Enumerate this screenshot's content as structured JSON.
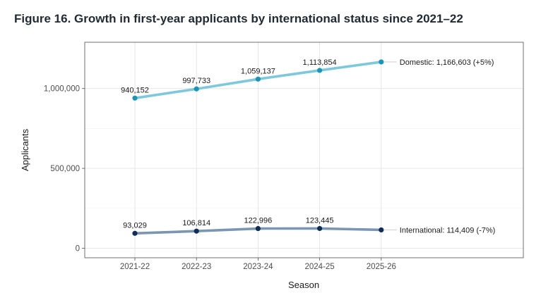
{
  "figure_title": "Figure 16. Growth in first-year applicants by international status since 2021–22",
  "chart_data": {
    "type": "line",
    "title": "Figure 16. Growth in first-year applicants by international status since 2021–22",
    "xlabel": "Season",
    "ylabel": "Applicants",
    "categories": [
      "2021-22",
      "2022-23",
      "2023-24",
      "2024-25",
      "2025-26"
    ],
    "ylim": [
      -60000,
      1290000
    ],
    "yticks": [
      0,
      500000,
      1000000
    ],
    "ytick_labels": [
      "0",
      "500,000",
      "1,000,000"
    ],
    "grid": true,
    "legend": "none (end labels)",
    "series": [
      {
        "name": "Domestic",
        "values": [
          940152,
          997733,
          1059137,
          1113854,
          1166603
        ],
        "data_labels": [
          "940,152",
          "997,733",
          "1,059,137",
          "1,113,854"
        ],
        "end_label": "Domestic: 1,166,603 (+5%)",
        "line_color": "#7ec8dc",
        "point_color": "#1a95b8"
      },
      {
        "name": "International",
        "values": [
          93029,
          106814,
          122996,
          123445,
          114409
        ],
        "data_labels": [
          "93,029",
          "106,814",
          "122,996",
          "123,445"
        ],
        "end_label": "International: 114,409 (-7%)",
        "line_color": "#7a96b0",
        "point_color": "#0e2f55"
      }
    ]
  }
}
